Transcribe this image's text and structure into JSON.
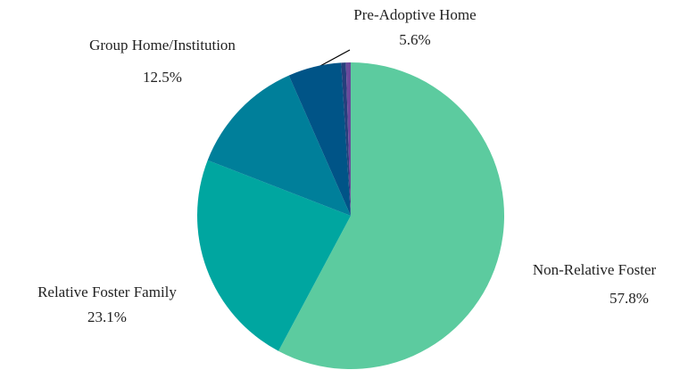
{
  "chart_data": {
    "type": "pie",
    "categories": [
      "Non-Relative Foster",
      "Relative Foster Family",
      "Group Home/Institution",
      "Pre-Adoptive Home",
      null,
      null
    ],
    "values": [
      57.8,
      23.1,
      12.5,
      5.6,
      0.5,
      0.5
    ],
    "value_labels": [
      "57.8%",
      "23.1%",
      "12.5%",
      "5.6%",
      null,
      null
    ],
    "colors": [
      "#5ccb9f",
      "#00a6a0",
      "#007f9a",
      "#005487",
      "#263f7c",
      "#6a4a9b"
    ]
  }
}
